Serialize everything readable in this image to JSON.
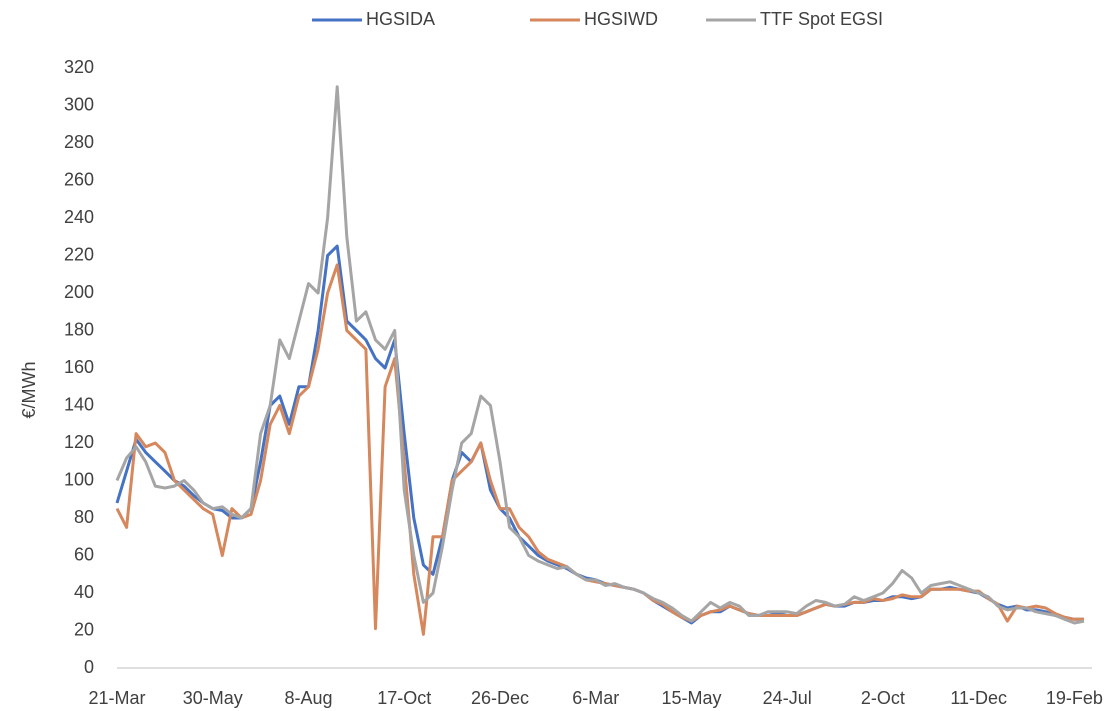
{
  "chart_data": {
    "type": "line",
    "y_label": "€/MWh",
    "categories": [
      "21-Mar",
      null,
      null,
      null,
      null,
      null,
      null,
      null,
      null,
      null,
      "30-May",
      null,
      null,
      null,
      null,
      null,
      null,
      null,
      null,
      null,
      "8-Aug",
      null,
      null,
      null,
      null,
      null,
      null,
      null,
      null,
      null,
      "17-Oct",
      null,
      null,
      null,
      null,
      null,
      null,
      null,
      null,
      null,
      "26-Dec",
      null,
      null,
      null,
      null,
      null,
      null,
      null,
      null,
      null,
      "6-Mar",
      null,
      null,
      null,
      null,
      null,
      null,
      null,
      null,
      null,
      "15-May",
      null,
      null,
      null,
      null,
      null,
      null,
      null,
      null,
      null,
      "24-Jul",
      null,
      null,
      null,
      null,
      null,
      null,
      null,
      null,
      null,
      "2-Oct",
      null,
      null,
      null,
      null,
      null,
      null,
      null,
      null,
      null,
      "11-Dec",
      null,
      null,
      null,
      null,
      null,
      null,
      null,
      null,
      null,
      "19-Feb",
      null
    ],
    "series": [
      {
        "name": "HGSIDA",
        "color": "#4472c4",
        "values": [
          88,
          105,
          122,
          115,
          110,
          105,
          100,
          97,
          92,
          88,
          85,
          84,
          80,
          80,
          85,
          110,
          140,
          145,
          130,
          150,
          150,
          180,
          220,
          225,
          185,
          180,
          175,
          165,
          160,
          175,
          125,
          80,
          55,
          50,
          70,
          100,
          115,
          110,
          120,
          95,
          85,
          80,
          70,
          65,
          60,
          57,
          55,
          53,
          50,
          48,
          47,
          45,
          44,
          43,
          42,
          40,
          36,
          33,
          30,
          27,
          24,
          28,
          30,
          30,
          33,
          31,
          29,
          28,
          28,
          29,
          28,
          28,
          30,
          32,
          34,
          33,
          33,
          35,
          35,
          36,
          36,
          38,
          38,
          37,
          38,
          42,
          42,
          43,
          42,
          41,
          40,
          37,
          34,
          32,
          33,
          31,
          31,
          30,
          28,
          27,
          26,
          26
        ]
      },
      {
        "name": "HGSIWD",
        "color": "#d6875c",
        "values": [
          85,
          75,
          125,
          118,
          120,
          115,
          100,
          95,
          90,
          85,
          82,
          60,
          85,
          80,
          82,
          100,
          130,
          140,
          125,
          145,
          150,
          170,
          200,
          215,
          180,
          175,
          170,
          21,
          150,
          165,
          110,
          50,
          18,
          70,
          70,
          100,
          105,
          110,
          120,
          100,
          85,
          85,
          75,
          70,
          62,
          58,
          56,
          54,
          50,
          47,
          46,
          45,
          44,
          43,
          42,
          40,
          36,
          34,
          30,
          27,
          25,
          28,
          30,
          31,
          33,
          31,
          29,
          28,
          28,
          28,
          28,
          28,
          30,
          32,
          34,
          33,
          34,
          35,
          35,
          37,
          36,
          37,
          39,
          38,
          38,
          42,
          42,
          42,
          42,
          41,
          41,
          37,
          34,
          25,
          33,
          32,
          33,
          32,
          29,
          27,
          26,
          26
        ]
      },
      {
        "name": "TTF Spot EGSI",
        "color": "#a5a5a5",
        "values": [
          100,
          112,
          118,
          110,
          97,
          96,
          97,
          100,
          95,
          88,
          85,
          86,
          82,
          80,
          85,
          125,
          140,
          175,
          165,
          185,
          205,
          200,
          240,
          310,
          230,
          185,
          190,
          175,
          170,
          180,
          95,
          60,
          35,
          40,
          65,
          95,
          120,
          125,
          145,
          140,
          110,
          75,
          70,
          60,
          57,
          55,
          53,
          54,
          50,
          47,
          47,
          44,
          45,
          43,
          42,
          40,
          37,
          35,
          32,
          28,
          25,
          30,
          35,
          32,
          35,
          33,
          28,
          28,
          30,
          30,
          30,
          29,
          33,
          36,
          35,
          33,
          34,
          38,
          36,
          38,
          40,
          45,
          52,
          48,
          40,
          44,
          45,
          46,
          44,
          42,
          40,
          38,
          33,
          31,
          32,
          32,
          30,
          29,
          28,
          26,
          24,
          25
        ]
      }
    ],
    "ylim": [
      0,
      320
    ],
    "yticks": [
      0,
      20,
      40,
      60,
      80,
      100,
      120,
      140,
      160,
      180,
      200,
      220,
      240,
      260,
      280,
      300,
      320
    ],
    "grid": false,
    "legend": "top"
  }
}
